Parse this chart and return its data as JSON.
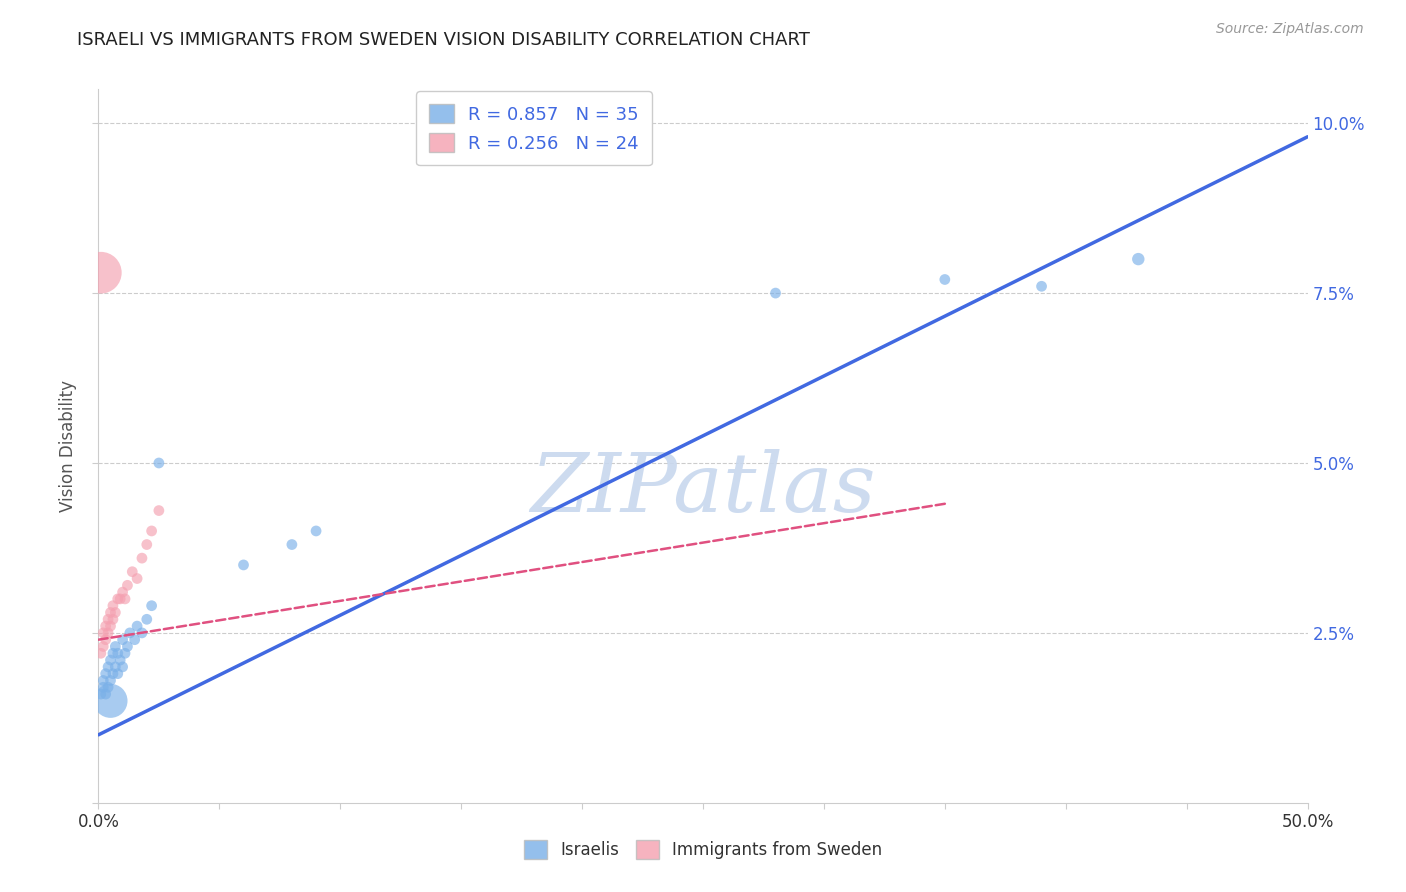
{
  "title": "ISRAELI VS IMMIGRANTS FROM SWEDEN VISION DISABILITY CORRELATION CHART",
  "source": "Source: ZipAtlas.com",
  "ylabel": "Vision Disability",
  "xlim": [
    0.0,
    0.5
  ],
  "ylim": [
    0.0,
    0.105
  ],
  "xticks": [
    0.0,
    0.05,
    0.1,
    0.15,
    0.2,
    0.25,
    0.3,
    0.35,
    0.4,
    0.45,
    0.5
  ],
  "xtick_labels": [
    "0.0%",
    "",
    "",
    "",
    "",
    "",
    "",
    "",
    "",
    "",
    "50.0%"
  ],
  "ytick_positions": [
    0.0,
    0.025,
    0.05,
    0.075,
    0.1
  ],
  "ytick_labels_right": [
    "",
    "2.5%",
    "5.0%",
    "7.5%",
    "10.0%"
  ],
  "legend_blue_r": "R = 0.857",
  "legend_blue_n": "N = 35",
  "legend_pink_r": "R = 0.256",
  "legend_pink_n": "N = 24",
  "watermark": "ZIPatlas",
  "watermark_color": "#c8d8ee",
  "blue_color": "#7ab0e8",
  "pink_color": "#f4a0b0",
  "blue_line_color": "#4169E1",
  "pink_line_color": "#E05080",
  "grid_color": "#cccccc",
  "blue_line_x1": 0.0,
  "blue_line_y1": 0.01,
  "blue_line_x2": 0.5,
  "blue_line_y2": 0.098,
  "pink_line_x1": 0.0,
  "pink_line_y1": 0.024,
  "pink_line_x2": 0.35,
  "pink_line_y2": 0.044,
  "blue_scatter_x": [
    0.001,
    0.002,
    0.002,
    0.003,
    0.003,
    0.004,
    0.004,
    0.005,
    0.005,
    0.006,
    0.006,
    0.007,
    0.007,
    0.008,
    0.008,
    0.009,
    0.01,
    0.01,
    0.011,
    0.012,
    0.013,
    0.015,
    0.016,
    0.018,
    0.02,
    0.022,
    0.025,
    0.06,
    0.08,
    0.09,
    0.28,
    0.35,
    0.39,
    0.43,
    0.005
  ],
  "blue_scatter_y": [
    0.016,
    0.017,
    0.018,
    0.016,
    0.019,
    0.017,
    0.02,
    0.018,
    0.021,
    0.019,
    0.022,
    0.02,
    0.023,
    0.019,
    0.022,
    0.021,
    0.02,
    0.024,
    0.022,
    0.023,
    0.025,
    0.024,
    0.026,
    0.025,
    0.027,
    0.029,
    0.05,
    0.035,
    0.038,
    0.04,
    0.075,
    0.077,
    0.076,
    0.08,
    0.015
  ],
  "blue_scatter_s": [
    60,
    60,
    60,
    60,
    60,
    60,
    60,
    60,
    60,
    60,
    60,
    60,
    60,
    60,
    60,
    60,
    60,
    60,
    60,
    60,
    60,
    60,
    60,
    60,
    60,
    60,
    60,
    60,
    60,
    60,
    60,
    60,
    60,
    80,
    600
  ],
  "pink_scatter_x": [
    0.001,
    0.002,
    0.002,
    0.003,
    0.003,
    0.004,
    0.004,
    0.005,
    0.005,
    0.006,
    0.006,
    0.007,
    0.008,
    0.009,
    0.01,
    0.011,
    0.012,
    0.014,
    0.016,
    0.018,
    0.02,
    0.022,
    0.025,
    0.001
  ],
  "pink_scatter_y": [
    0.022,
    0.023,
    0.025,
    0.024,
    0.026,
    0.025,
    0.027,
    0.026,
    0.028,
    0.027,
    0.029,
    0.028,
    0.03,
    0.03,
    0.031,
    0.03,
    0.032,
    0.034,
    0.033,
    0.036,
    0.038,
    0.04,
    0.043,
    0.078
  ],
  "pink_scatter_s": [
    60,
    60,
    60,
    60,
    60,
    60,
    60,
    60,
    60,
    60,
    60,
    60,
    60,
    60,
    60,
    60,
    60,
    60,
    60,
    60,
    60,
    60,
    60,
    900
  ]
}
